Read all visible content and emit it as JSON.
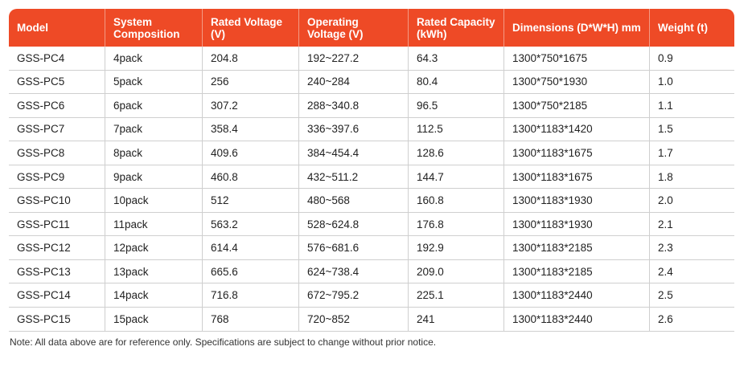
{
  "table": {
    "headers": [
      "Model",
      "System Composition",
      "Rated Voltage (V)",
      "Operating Voltage (V)",
      "Rated Capacity (kWh)",
      "Dimensions (D*W*H) mm",
      "Weight (t)"
    ],
    "rows": [
      [
        "GSS-PC4",
        "4pack",
        "204.8",
        "192~227.2",
        "64.3",
        "1300*750*1675",
        "0.9"
      ],
      [
        "GSS-PC5",
        "5pack",
        "256",
        "240~284",
        "80.4",
        "1300*750*1930",
        "1.0"
      ],
      [
        "GSS-PC6",
        "6pack",
        "307.2",
        "288~340.8",
        "96.5",
        "1300*750*2185",
        "1.1"
      ],
      [
        "GSS-PC7",
        "7pack",
        "358.4",
        "336~397.6",
        "112.5",
        "1300*1183*1420",
        "1.5"
      ],
      [
        "GSS-PC8",
        "8pack",
        "409.6",
        "384~454.4",
        "128.6",
        "1300*1183*1675",
        "1.7"
      ],
      [
        "GSS-PC9",
        "9pack",
        "460.8",
        "432~511.2",
        "144.7",
        "1300*1183*1675",
        "1.8"
      ],
      [
        "GSS-PC10",
        "10pack",
        "512",
        "480~568",
        "160.8",
        "1300*1183*1930",
        "2.0"
      ],
      [
        "GSS-PC11",
        "11pack",
        "563.2",
        "528~624.8",
        "176.8",
        "1300*1183*1930",
        "2.1"
      ],
      [
        "GSS-PC12",
        "12pack",
        "614.4",
        "576~681.6",
        "192.9",
        "1300*1183*2185",
        "2.3"
      ],
      [
        "GSS-PC13",
        "13pack",
        "665.6",
        "624~738.4",
        "209.0",
        "1300*1183*2185",
        "2.4"
      ],
      [
        "GSS-PC14",
        "14pack",
        "716.8",
        "672~795.2",
        "225.1",
        "1300*1183*2440",
        "2.5"
      ],
      [
        "GSS-PC15",
        "15pack",
        "768",
        "720~852",
        "241",
        "1300*1183*2440",
        "2.6"
      ]
    ]
  },
  "note": "Note: All data above are for reference only. Specifications are subject to change without prior notice.",
  "colors": {
    "header_bg": "#ee4a26",
    "header_text": "#ffffff",
    "row_border": "#cfcfcf"
  }
}
